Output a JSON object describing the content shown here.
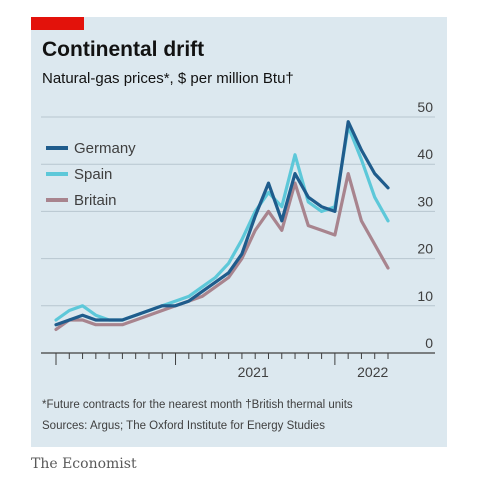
{
  "header": {
    "title": "Continental drift",
    "subtitle": "Natural-gas prices*, $ per million Btu†"
  },
  "footer": {
    "footnote": "*Future contracts for the nearest month  †British thermal units",
    "sources": "Sources: Argus; The Oxford Institute for Energy Studies",
    "brand": "The Economist"
  },
  "colors": {
    "accent": "#e3120b",
    "Germany": "#1f5c8c",
    "Spain": "#5dc8d9",
    "Britain": "#a8848e"
  },
  "chart_data": {
    "type": "line",
    "x": [
      "2020-04",
      "2020-05",
      "2020-06",
      "2020-07",
      "2020-08",
      "2020-09",
      "2020-10",
      "2020-11",
      "2020-12",
      "2021-01",
      "2021-02",
      "2021-03",
      "2021-04",
      "2021-05",
      "2021-06",
      "2021-07",
      "2021-08",
      "2021-09",
      "2021-10",
      "2021-11",
      "2021-12",
      "2022-01",
      "2022-02",
      "2022-03",
      "2022-04",
      "2022-05"
    ],
    "x_tick_labels": [
      "2021",
      "2022"
    ],
    "series": [
      {
        "name": "Germany",
        "values": [
          6,
          7,
          8,
          7,
          7,
          7,
          8,
          9,
          10,
          10,
          11,
          13,
          15,
          17,
          21,
          29,
          36,
          28,
          38,
          33,
          31,
          30,
          49,
          43,
          38,
          35
        ]
      },
      {
        "name": "Spain",
        "values": [
          7,
          9,
          10,
          8,
          7,
          7,
          8,
          9,
          10,
          11,
          12,
          14,
          16,
          19,
          24,
          30,
          34,
          31,
          42,
          32,
          30,
          31,
          48,
          41,
          33,
          28
        ]
      },
      {
        "name": "Britain",
        "values": [
          5,
          7,
          7,
          6,
          6,
          6,
          7,
          8,
          9,
          10,
          11,
          12,
          14,
          16,
          20,
          26,
          30,
          26,
          36,
          27,
          26,
          25,
          38,
          28,
          23,
          18
        ]
      }
    ],
    "ylim": [
      0,
      50
    ],
    "y_ticks": [
      0,
      10,
      20,
      30,
      40,
      50
    ],
    "legend": "top-left",
    "grid": true
  }
}
